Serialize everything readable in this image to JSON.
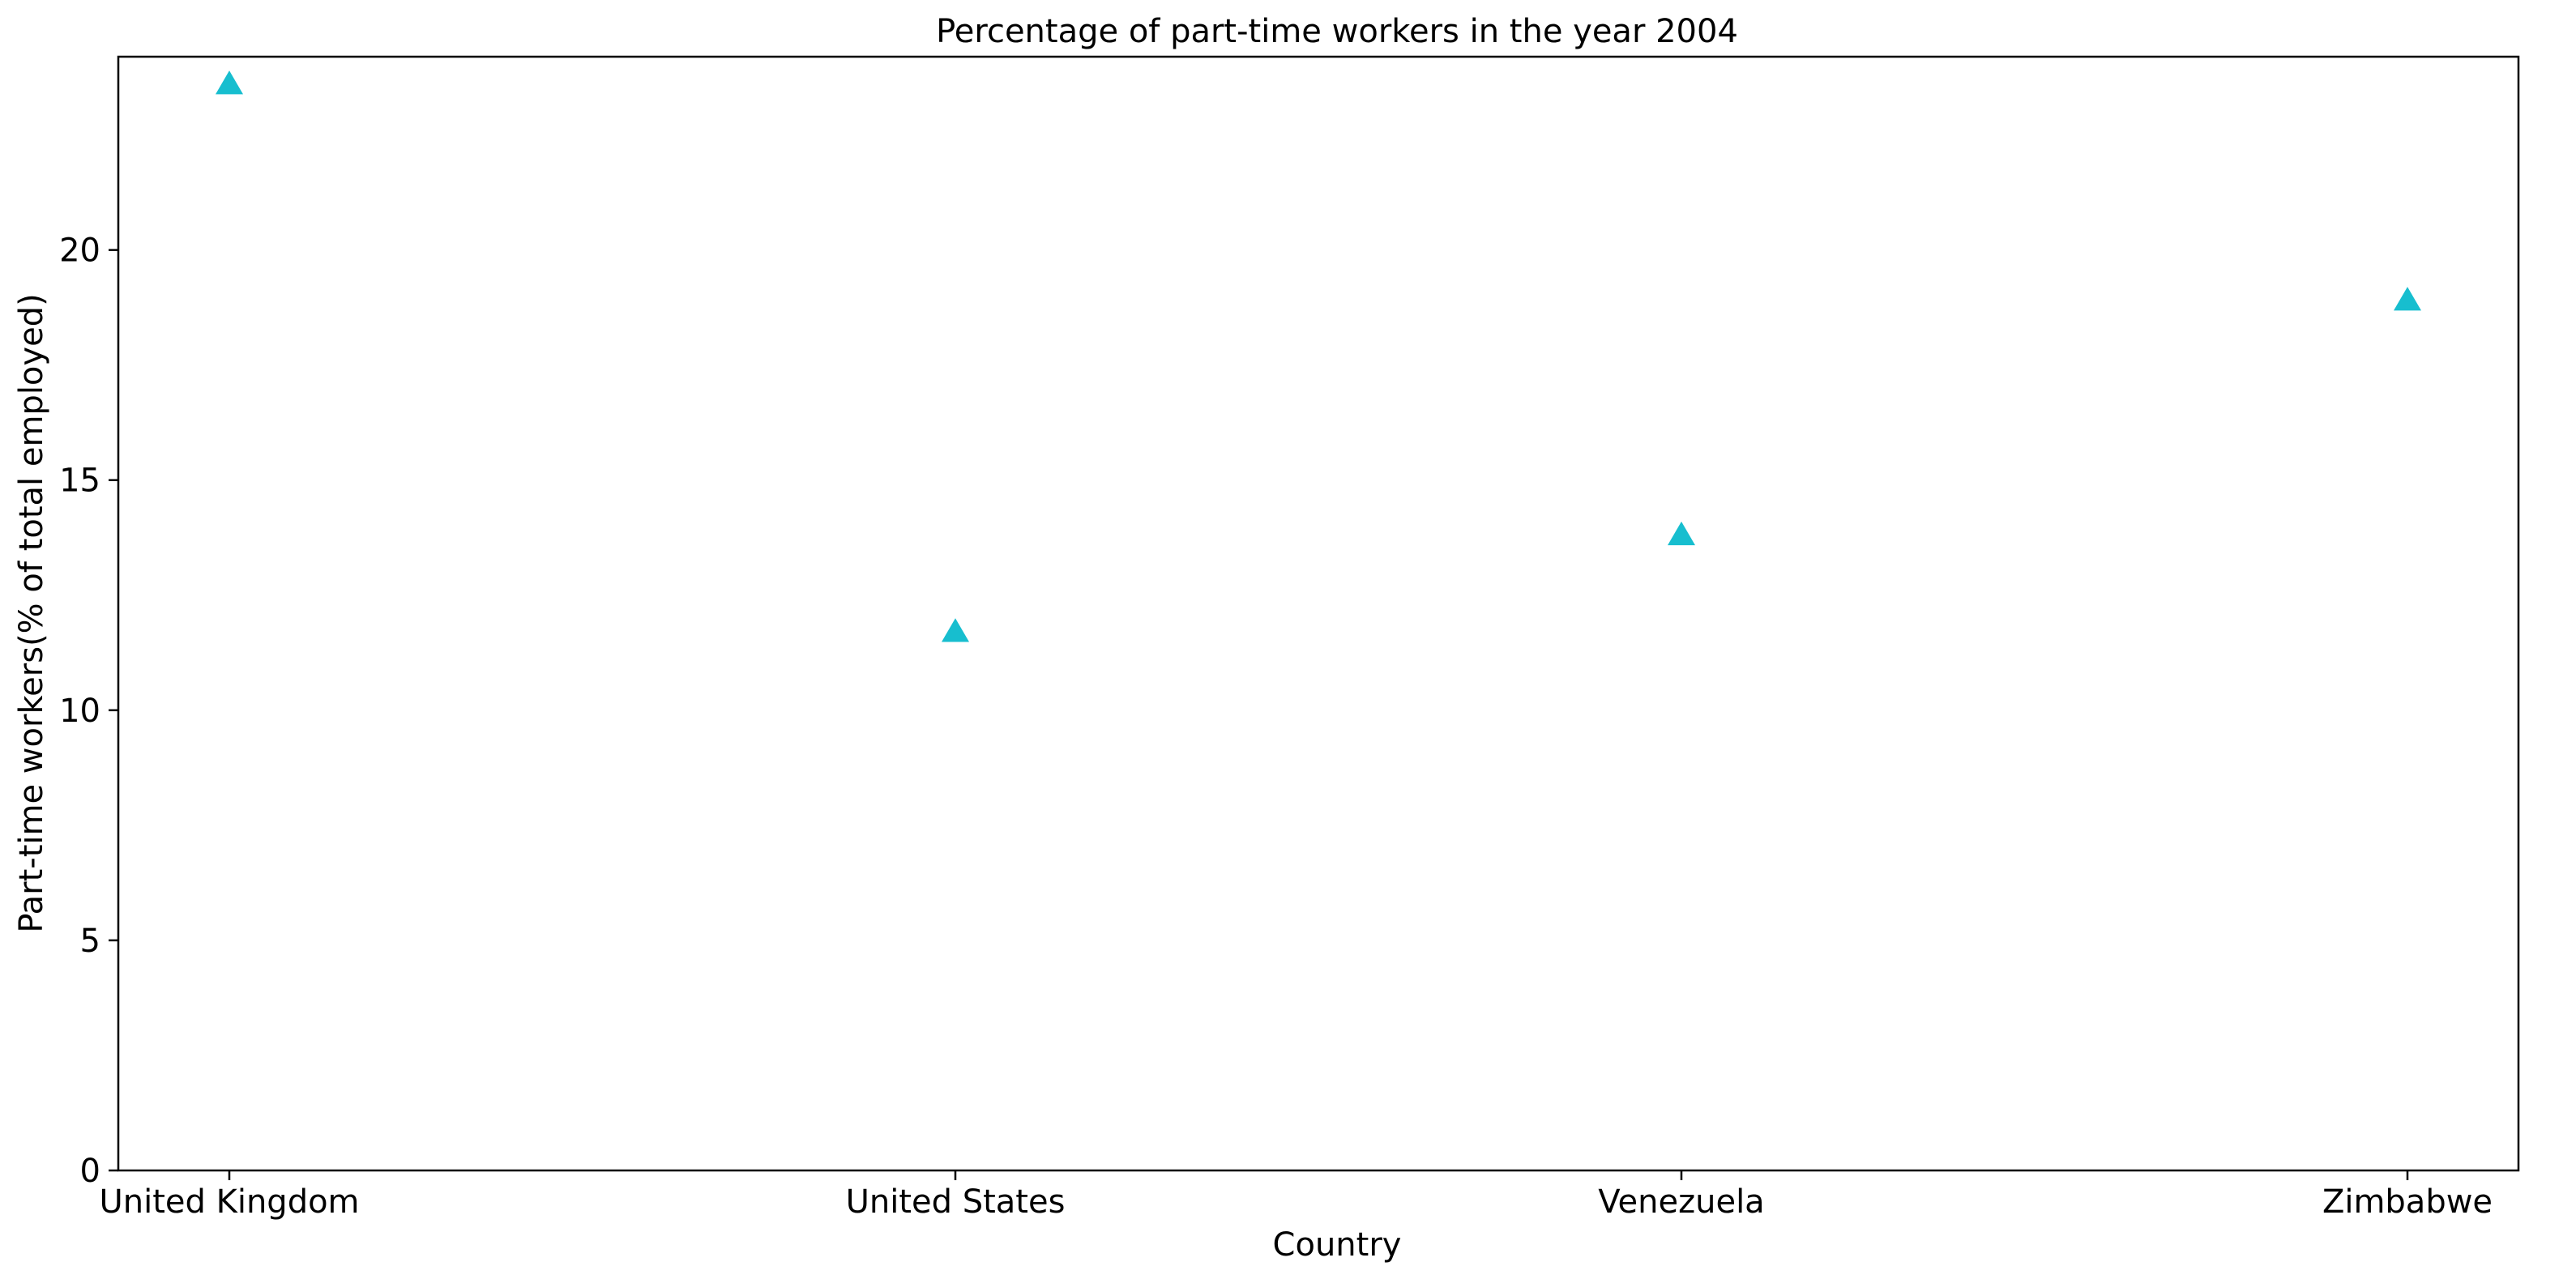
{
  "chart_data": {
    "type": "scatter",
    "title": "Percentage of part-time workers in the year 2004",
    "xlabel": "Country",
    "ylabel": "Part-time workers(% of total employed)",
    "categories": [
      "United Kingdom",
      "United States",
      "Venezuela",
      "Zimbabwe"
    ],
    "series": [
      {
        "values": [
          23.6,
          11.7,
          13.8,
          18.9
        ],
        "color": "#17BECF",
        "marker": "triangle-up"
      }
    ],
    "ylim": [
      0,
      24.2
    ],
    "yticks": [
      0,
      5,
      10,
      15,
      20
    ],
    "grid": false,
    "legend": "none"
  }
}
